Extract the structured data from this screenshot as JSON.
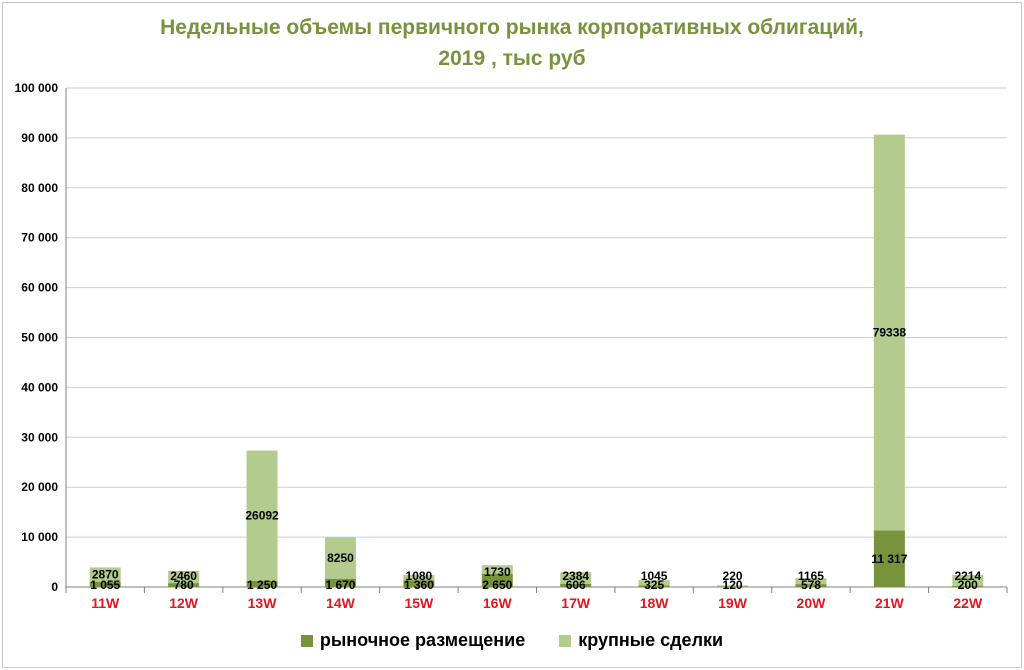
{
  "chart_data": {
    "type": "bar",
    "stacked": true,
    "title_lines": [
      "Недельные объемы первичного рынка корпоративных облигаций,",
      "2019 , тыс руб"
    ],
    "categories": [
      "11W",
      "12W",
      "13W",
      "14W",
      "15W",
      "16W",
      "17W",
      "18W",
      "19W",
      "20W",
      "21W",
      "22W"
    ],
    "series": [
      {
        "name": "рыночное размещение",
        "color": "#77933c",
        "values": [
          1055,
          780,
          1250,
          1670,
          1360,
          2650,
          606,
          325,
          120,
          578,
          11317,
          200
        ],
        "labels": [
          "1 055",
          "780",
          "1 250",
          "1 670",
          "1 360",
          "2 650",
          "606",
          "325",
          "120",
          "578",
          "11 317",
          "200"
        ]
      },
      {
        "name": "крупные сделки",
        "color": "#b3cc8e",
        "values": [
          2870,
          2460,
          26092,
          8250,
          1080,
          1730,
          2384,
          1045,
          220,
          1165,
          79338,
          2214
        ],
        "labels": [
          "2870",
          "2460",
          "26092",
          "8250",
          "1080",
          "1730",
          "2384",
          "1045",
          "220",
          "1165",
          "79338",
          "2214"
        ]
      }
    ],
    "ylim": [
      0,
      100000
    ],
    "yticks": [
      0,
      10000,
      20000,
      30000,
      40000,
      50000,
      60000,
      70000,
      80000,
      90000,
      100000
    ],
    "ytick_labels": [
      "0",
      "10 000",
      "20 000",
      "30 000",
      "40 000",
      "50 000",
      "60 000",
      "70 000",
      "80 000",
      "90 000",
      "100 000"
    ],
    "grid": true,
    "legend_position": "bottom"
  }
}
